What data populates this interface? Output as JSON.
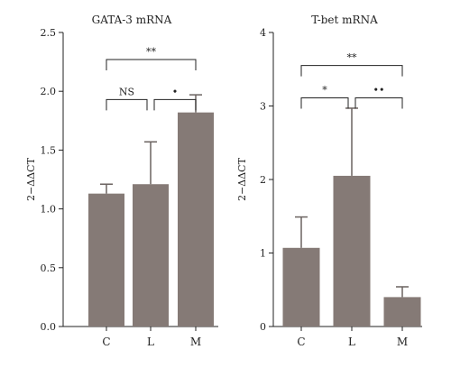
{
  "chart_data": [
    {
      "type": "bar",
      "title": "GATA-3 mRNA",
      "xlabel": "",
      "ylabel": "2−ΔΔCT",
      "categories": [
        "C",
        "L",
        "M"
      ],
      "values": [
        1.13,
        1.21,
        1.82
      ],
      "errors": [
        0.08,
        0.36,
        0.15
      ],
      "ylim": [
        0,
        2.5
      ],
      "yticks": [
        "0.0",
        "0.5",
        "1.0",
        "1.5",
        "2.0",
        "2.5"
      ],
      "bar_color": "#857a76",
      "significance": [
        {
          "from": 1,
          "to": 2,
          "label": "NS",
          "level": 1.93
        },
        {
          "from": 2,
          "to": 3,
          "label": "•",
          "level": 1.93
        },
        {
          "from": 1,
          "to": 3,
          "label": "**",
          "level": 2.27
        }
      ]
    },
    {
      "type": "bar",
      "title": "T-bet mRNA",
      "xlabel": "",
      "ylabel": "2−ΔΔCT",
      "categories": [
        "C",
        "L",
        "M"
      ],
      "values": [
        1.07,
        2.05,
        0.4
      ],
      "errors": [
        0.42,
        0.92,
        0.14
      ],
      "ylim": [
        0,
        4
      ],
      "yticks": [
        "0",
        "1",
        "2",
        "3",
        "4"
      ],
      "bar_color": "#857a76",
      "significance": [
        {
          "from": 1,
          "to": 2,
          "label": "*",
          "level": 3.11
        },
        {
          "from": 2,
          "to": 3,
          "label": "••",
          "level": 3.11
        },
        {
          "from": 1,
          "to": 3,
          "label": "**",
          "level": 3.55
        }
      ]
    }
  ]
}
